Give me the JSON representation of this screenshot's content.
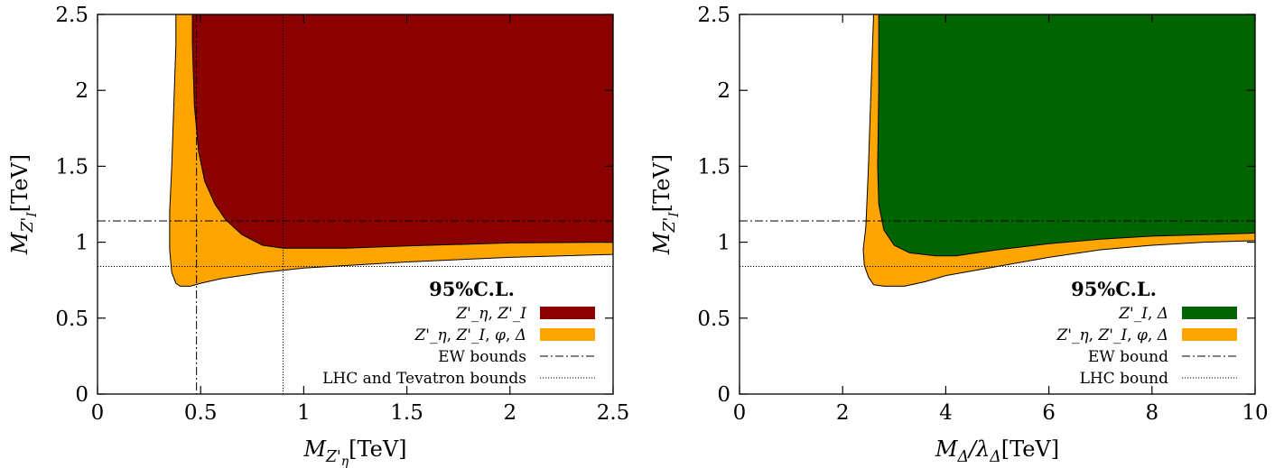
{
  "chart_data": [
    {
      "type": "area",
      "title": "",
      "xlabel": "M_{Z'_η}[TeV]",
      "ylabel": "M_{Z'_I}[TeV]",
      "xlim": [
        0,
        2.5
      ],
      "ylim": [
        0,
        2.5
      ],
      "xticks": [
        "0",
        "0.5",
        "1",
        "1.5",
        "2",
        "2.5"
      ],
      "yticks": [
        "0",
        "0.5",
        "1",
        "1.5",
        "2",
        "2.5"
      ],
      "xtick_values": [
        0,
        0.5,
        1,
        1.5,
        2,
        2.5
      ],
      "ytick_values": [
        0,
        0.5,
        1,
        1.5,
        2,
        2.5
      ],
      "grid": false,
      "legend_position": "bottom-right",
      "legend_title": "95%C.L.",
      "series": [
        {
          "name": "Z'_η, Z'_I",
          "color": "#8b0000",
          "style": "region",
          "boundary": [
            [
              0.46,
              2.5
            ],
            [
              0.46,
              2.3
            ],
            [
              0.47,
              1.9
            ],
            [
              0.49,
              1.6
            ],
            [
              0.52,
              1.4
            ],
            [
              0.57,
              1.25
            ],
            [
              0.62,
              1.15
            ],
            [
              0.7,
              1.05
            ],
            [
              0.8,
              0.98
            ],
            [
              0.9,
              0.96
            ],
            [
              1.2,
              0.96
            ],
            [
              1.5,
              0.975
            ],
            [
              2.0,
              0.995
            ],
            [
              2.5,
              1.0
            ],
            [
              2.5,
              2.5
            ]
          ]
        },
        {
          "name": "Z'_η,  Z'_I,  φ,  Δ",
          "color": "#ffa500",
          "style": "region",
          "boundary": [
            [
              0.38,
              2.5
            ],
            [
              0.38,
              2.3
            ],
            [
              0.37,
              1.9
            ],
            [
              0.36,
              1.5
            ],
            [
              0.35,
              1.2
            ],
            [
              0.35,
              0.95
            ],
            [
              0.36,
              0.8
            ],
            [
              0.38,
              0.73
            ],
            [
              0.4,
              0.71
            ],
            [
              0.45,
              0.71
            ],
            [
              0.5,
              0.73
            ],
            [
              0.6,
              0.76
            ],
            [
              0.8,
              0.8
            ],
            [
              1.0,
              0.83
            ],
            [
              1.5,
              0.87
            ],
            [
              2.0,
              0.9
            ],
            [
              2.5,
              0.92
            ],
            [
              2.5,
              2.5
            ]
          ]
        },
        {
          "name": "EW bounds",
          "color": "#000000",
          "style": "dash-dot",
          "lines": {
            "y": 1.14,
            "x": 0.48
          }
        },
        {
          "name": "LHC and Tevatron bounds",
          "color": "#000000",
          "style": "dotted",
          "lines": {
            "y": 0.84,
            "x": 0.9
          }
        }
      ]
    },
    {
      "type": "area",
      "title": "",
      "xlabel": "M_Δ/λ_Δ[TeV]",
      "ylabel": "M_{Z'_I}[TeV]",
      "xlim": [
        0,
        10
      ],
      "ylim": [
        0,
        2.5
      ],
      "xticks": [
        "0",
        "2",
        "4",
        "6",
        "8",
        "10"
      ],
      "yticks": [
        "0",
        "0.5",
        "1",
        "1.5",
        "2",
        "2.5"
      ],
      "xtick_values": [
        0,
        2,
        4,
        6,
        8,
        10
      ],
      "ytick_values": [
        0,
        0.5,
        1,
        1.5,
        2,
        2.5
      ],
      "grid": false,
      "legend_position": "bottom-right",
      "legend_title": "95%C.L.",
      "series": [
        {
          "name": "Z'_I, Δ",
          "color": "#006400",
          "style": "region",
          "boundary": [
            [
              2.7,
              2.5
            ],
            [
              2.7,
              2.0
            ],
            [
              2.68,
              1.5
            ],
            [
              2.7,
              1.25
            ],
            [
              2.8,
              1.08
            ],
            [
              3.0,
              0.98
            ],
            [
              3.3,
              0.93
            ],
            [
              3.8,
              0.91
            ],
            [
              4.2,
              0.91
            ],
            [
              5.0,
              0.95
            ],
            [
              6.0,
              0.99
            ],
            [
              7.0,
              1.02
            ],
            [
              8.0,
              1.04
            ],
            [
              9.0,
              1.05
            ],
            [
              10.0,
              1.06
            ],
            [
              10.0,
              2.5
            ]
          ]
        },
        {
          "name": "Z'_η,  Z'_I,  φ,  Δ",
          "color": "#ffa500",
          "style": "region",
          "boundary": [
            [
              2.6,
              2.5
            ],
            [
              2.55,
              2.0
            ],
            [
              2.5,
              1.5
            ],
            [
              2.45,
              1.1
            ],
            [
              2.4,
              0.95
            ],
            [
              2.42,
              0.85
            ],
            [
              2.5,
              0.77
            ],
            [
              2.6,
              0.72
            ],
            [
              2.8,
              0.71
            ],
            [
              3.2,
              0.71
            ],
            [
              3.6,
              0.74
            ],
            [
              4.0,
              0.78
            ],
            [
              5.0,
              0.84
            ],
            [
              6.0,
              0.9
            ],
            [
              7.0,
              0.95
            ],
            [
              8.0,
              0.98
            ],
            [
              9.0,
              1.0
            ],
            [
              10.0,
              1.01
            ],
            [
              10.0,
              2.5
            ]
          ]
        },
        {
          "name": "EW bound",
          "color": "#000000",
          "style": "dash-dot",
          "lines": {
            "y": 1.14
          }
        },
        {
          "name": "LHC bound",
          "color": "#000000",
          "style": "dotted",
          "lines": {
            "y": 0.84
          }
        }
      ]
    }
  ]
}
